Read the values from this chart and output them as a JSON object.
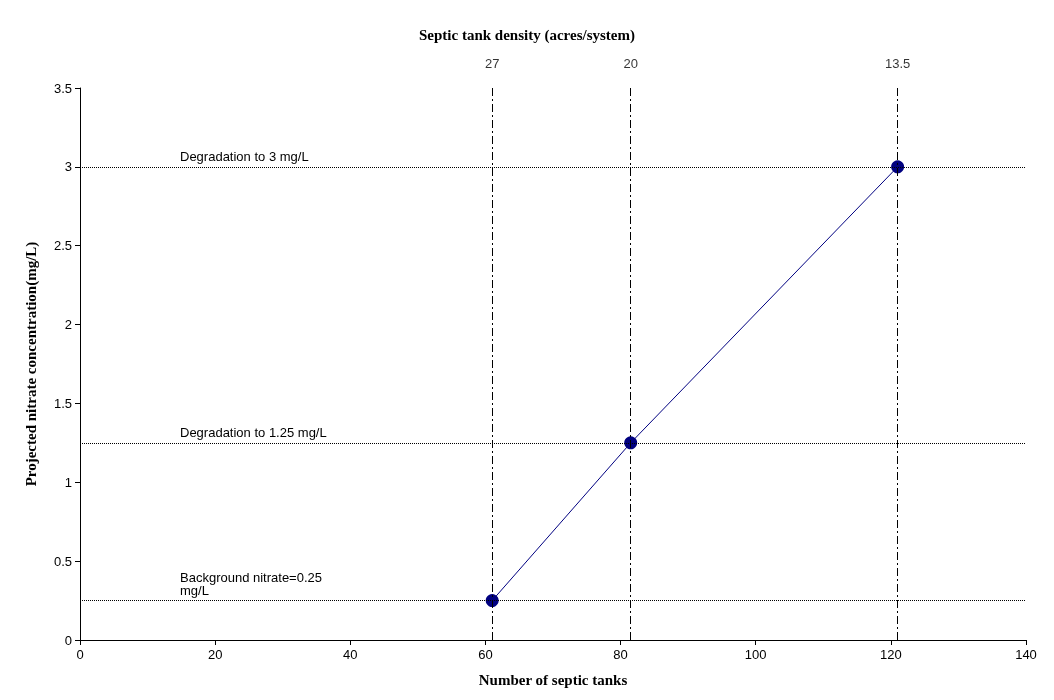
{
  "chart_data": {
    "type": "line",
    "xlabel": "Number of septic tanks",
    "ylabel": "Projected nitrate concentration(mg/L)",
    "title": "Septic tank density (acres/system)",
    "x": [
      61,
      81.5,
      121
    ],
    "series": [
      {
        "color": "#000080",
        "values": [
          0.25,
          1.25,
          3.0
        ]
      }
    ],
    "marker": "circle",
    "line_style": "solid",
    "grid": false,
    "annotations": [
      {
        "text": "27",
        "x": 61,
        "y": 3.5
      },
      {
        "text": "20",
        "x": 81.5,
        "y": 3.5
      },
      {
        "text": "13.5",
        "x": 121,
        "y": 3.5
      }
    ],
    "xlim": [
      0,
      140
    ],
    "xticks": [
      0,
      20,
      40,
      60,
      80,
      100,
      120,
      140
    ],
    "ylim": [
      0,
      3.5
    ],
    "yticks": [
      0,
      0.5,
      1,
      1.5,
      2,
      2.5,
      3,
      3.5
    ],
    "ref_lines": [
      {
        "axis": "y",
        "value": 3,
        "label": "Degradation to 3 mg/L",
        "line_style": "dotted",
        "color": "#000000"
      },
      {
        "axis": "y",
        "value": 1.25,
        "label": "Degradation to 1.25 mg/L",
        "line_style": "dotted",
        "color": "#000000"
      },
      {
        "axis": "y",
        "value": 0.25,
        "label": "Background nitrate=0.25 mg/L",
        "line_style": "dotted",
        "color": "#000000"
      },
      {
        "axis": "x",
        "value": 61,
        "line_style": "dashed",
        "color": "#000000"
      },
      {
        "axis": "x",
        "value": 81.5,
        "line_style": "dashed",
        "color": "#000000"
      },
      {
        "axis": "x",
        "value": 121,
        "line_style": "dashed",
        "color": "#000000"
      }
    ]
  }
}
